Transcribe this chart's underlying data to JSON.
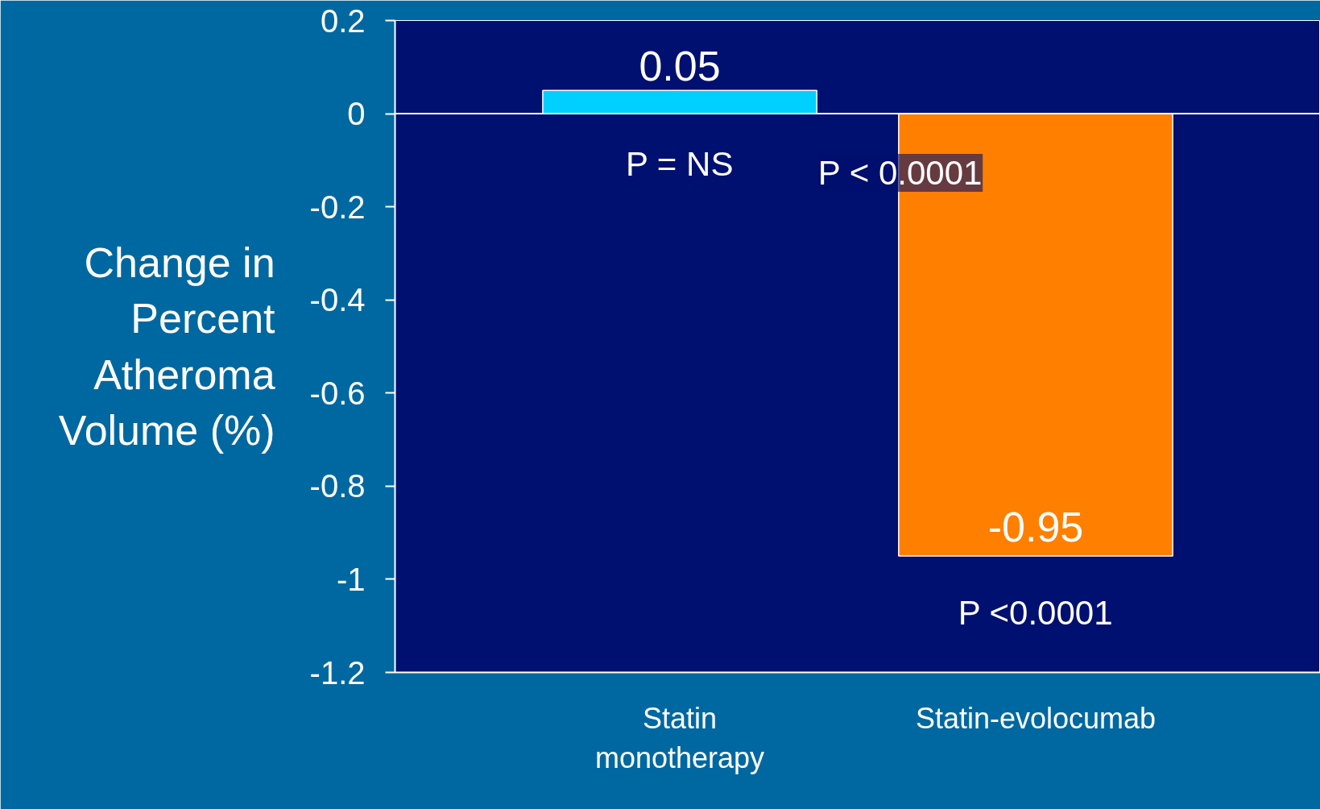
{
  "chart_data": {
    "type": "bar",
    "ylabel": "Change in Percent Atheroma Volume (%)",
    "categories": [
      "Statin monotherapy",
      "Statin-evolocumab"
    ],
    "values": [
      0.05,
      -0.95
    ],
    "colors": [
      "#00d0ff",
      "#ff7f00"
    ],
    "ylim": [
      -1.2,
      0.2
    ],
    "yticks": [
      -1.2,
      -1,
      -0.8,
      -0.6,
      -0.4,
      -0.2,
      0,
      0.2
    ],
    "grid": false,
    "data_labels": true,
    "ref_lines": [
      {
        "axis": "y",
        "value": 0,
        "color": "#ffffff"
      }
    ],
    "annotations": [
      "P = NS",
      "P < 0.0001",
      "P <0.0001"
    ]
  }
}
